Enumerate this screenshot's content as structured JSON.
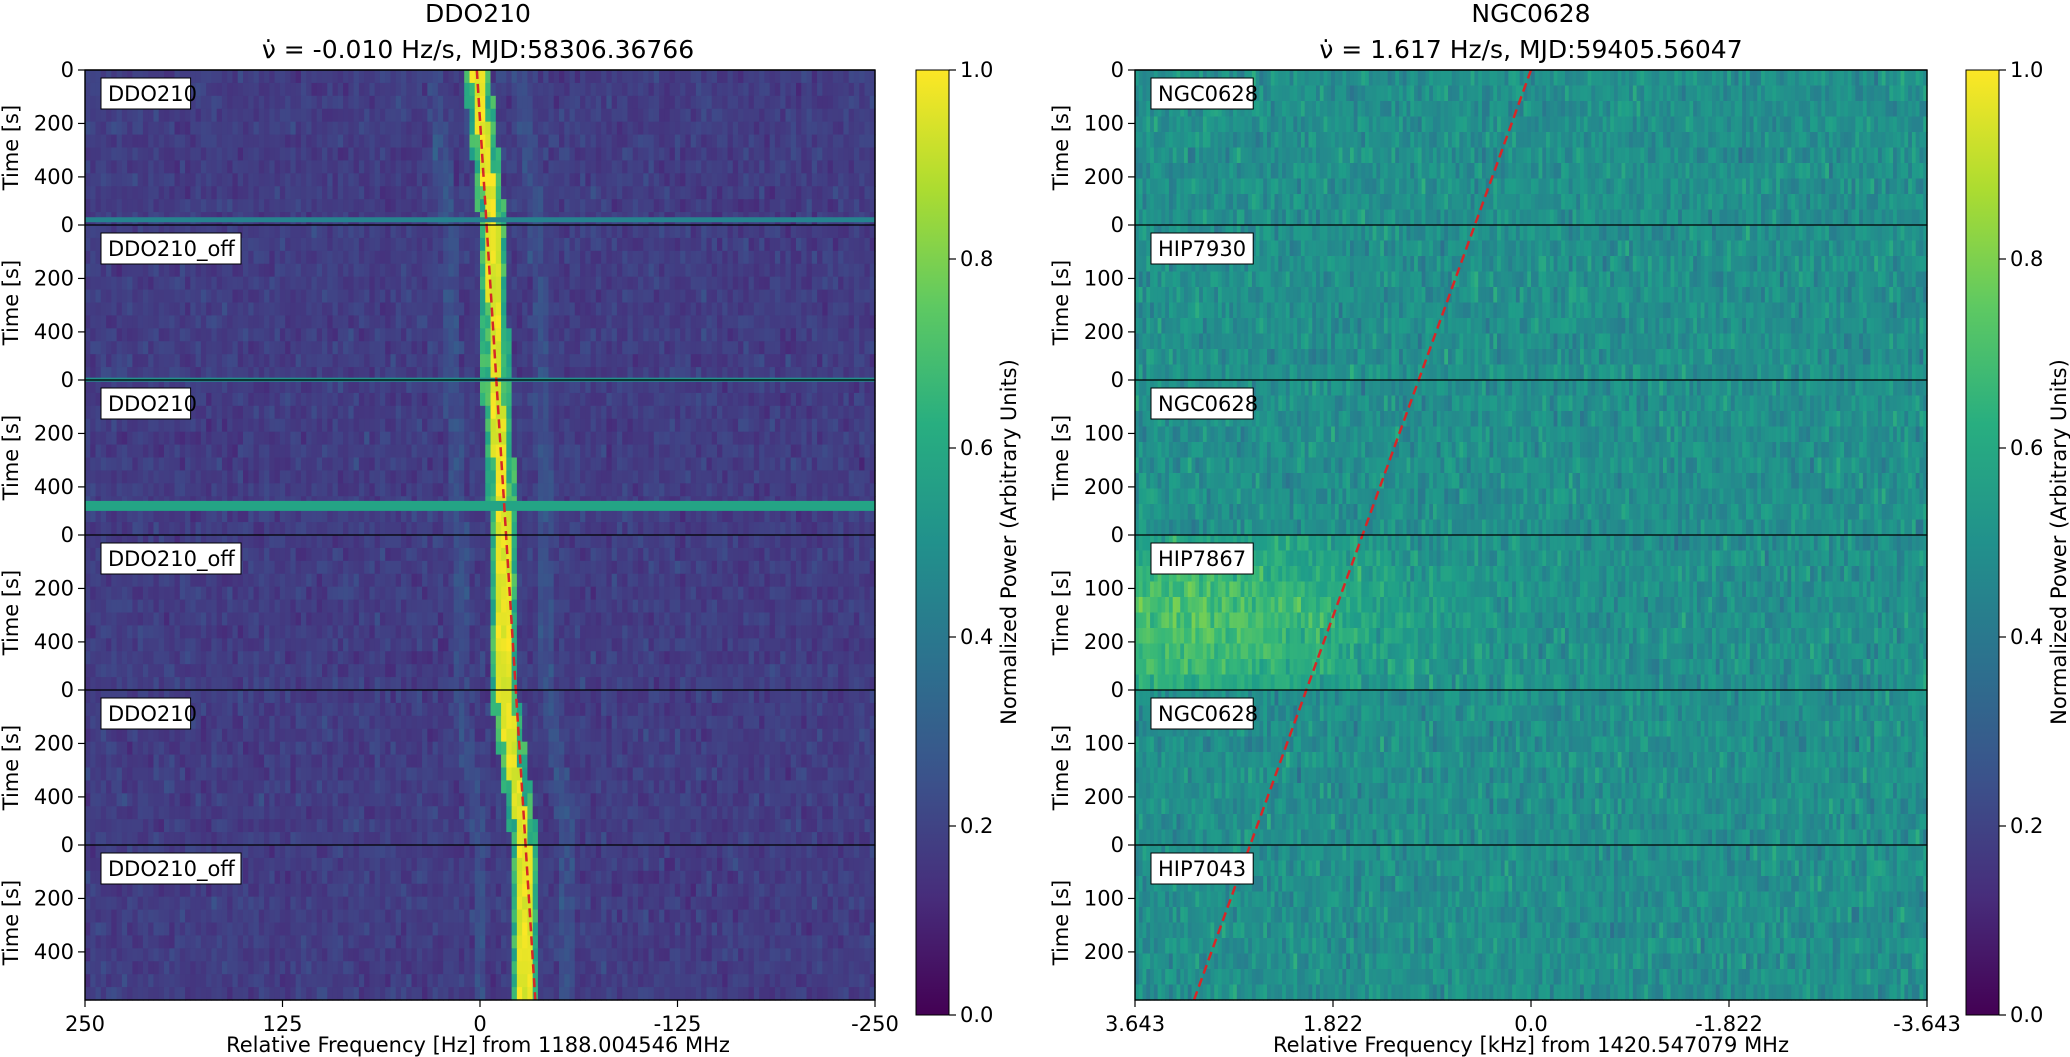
{
  "figure": {
    "colormap": "viridis"
  },
  "chart_data": [
    {
      "type": "heatmap",
      "id": "left",
      "title": "DDO210",
      "subtitle": "ν̇ = -0.010 Hz/s, MJD:58306.36766",
      "xlabel": "Relative Frequency [Hz] from 1188.004546 MHz",
      "ylabel": "Time [s]",
      "xlim": [
        250,
        -250
      ],
      "xticks": [
        "250",
        "125",
        "0",
        "-125",
        "-250"
      ],
      "panel_ylim": [
        0,
        580
      ],
      "yticks": [
        [
          "0",
          "200",
          "400"
        ],
        [
          "0",
          "200",
          "400"
        ],
        [
          "0",
          "200",
          "400"
        ],
        [
          "0",
          "200",
          "400"
        ],
        [
          "0",
          "200",
          "400"
        ],
        [
          "0",
          "200",
          "400"
        ]
      ],
      "panels": [
        "DDO210",
        "DDO210_off",
        "DDO210",
        "DDO210_off",
        "DDO210",
        "DDO210_off"
      ],
      "background": 0.18,
      "signal_track_hz": [
        [
          0,
          2
        ],
        [
          1,
          -8
        ],
        [
          2,
          -10
        ],
        [
          3,
          -15
        ],
        [
          4,
          -15
        ],
        [
          5,
          -28
        ]
      ],
      "drift_line_hz": [
        [
          0,
          2
        ],
        [
          6,
          -35
        ]
      ],
      "colorbar": {
        "label": "Normalized Power (Arbitrary Units)",
        "min": 0.0,
        "max": 1.0,
        "ticks": [
          "0.0",
          "0.2",
          "0.4",
          "0.6",
          "0.8",
          "1.0"
        ]
      }
    },
    {
      "type": "heatmap",
      "id": "right",
      "title": "NGC0628",
      "subtitle": "ν̇ = 1.617 Hz/s, MJD:59405.56047",
      "xlabel": "Relative Frequency [kHz] from 1420.547079 MHz",
      "ylabel": "Time [s]",
      "xlim": [
        3.643,
        -3.643
      ],
      "xticks": [
        "3.643",
        "1.822",
        "0.0",
        "-1.822",
        "-3.643"
      ],
      "panel_ylim": [
        0,
        290
      ],
      "yticks": [
        [
          "0",
          "100",
          "200"
        ],
        [
          "0",
          "100",
          "200"
        ],
        [
          "0",
          "100",
          "200"
        ],
        [
          "0",
          "100",
          "200"
        ],
        [
          "0",
          "100",
          "200"
        ],
        [
          "0",
          "100",
          "200"
        ]
      ],
      "panels": [
        "NGC0628",
        "HIP7930",
        "NGC0628",
        "HIP7867",
        "NGC0628",
        "HIP7043"
      ],
      "background": 0.5,
      "drift_line_khz": [
        [
          0,
          0.0
        ],
        [
          6,
          3.1
        ]
      ],
      "colorbar": {
        "label": "Normalized Power (Arbitrary Units)",
        "min": 0.0,
        "max": 1.0,
        "ticks": [
          "0.0",
          "0.2",
          "0.4",
          "0.6",
          "0.8",
          "1.0"
        ]
      }
    }
  ]
}
